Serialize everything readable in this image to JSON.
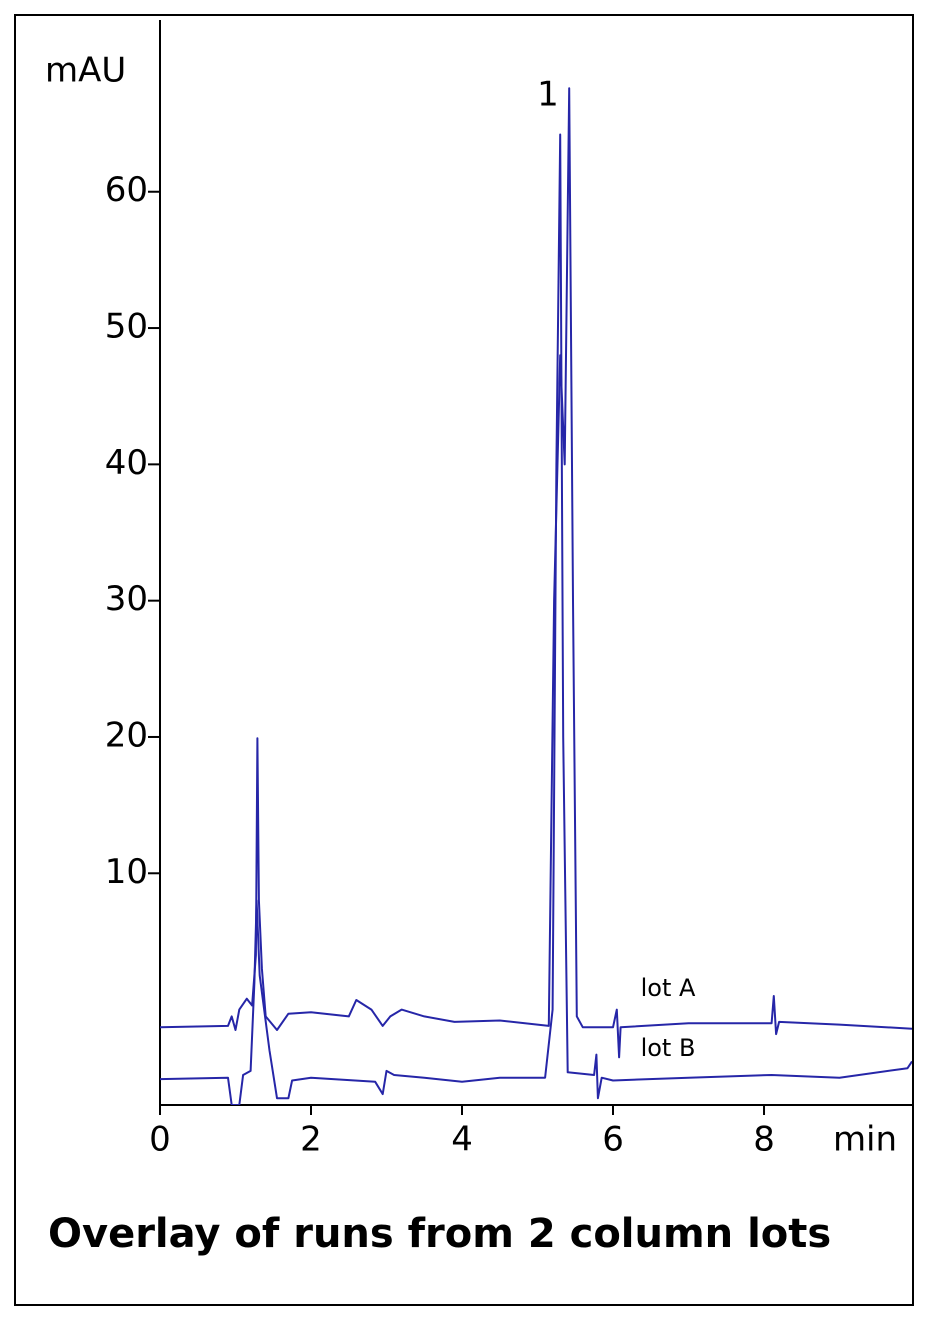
{
  "chart_data": {
    "type": "line",
    "title": "Overlay of runs from 2 column lots",
    "x_label": "min",
    "y_label": "mAU",
    "annotations": [
      "1",
      "lot A",
      "lot B"
    ],
    "xlim": [
      0,
      9.96
    ],
    "ylim": [
      -7,
      72.6
    ],
    "xticks": [
      0,
      2,
      4,
      6,
      8
    ],
    "yticks": [
      10,
      20,
      30,
      40,
      50,
      60
    ],
    "grid": false,
    "series": [
      {
        "name": "lot A",
        "color": "#2626a8",
        "x": [
          0,
          0.9,
          0.95,
          1.0,
          1.05,
          1.15,
          1.22,
          1.27,
          1.29,
          1.31,
          1.35,
          1.4,
          1.55,
          1.7,
          2.0,
          2.5,
          2.6,
          2.8,
          2.95,
          3.05,
          3.2,
          3.5,
          3.9,
          4.5,
          5.15,
          5.22,
          5.3,
          5.36,
          5.42,
          5.47,
          5.52,
          5.6,
          6.0,
          6.05,
          6.08,
          6.1,
          7.0,
          8.1,
          8.13,
          8.16,
          8.2,
          9.0,
          9.96
        ],
        "values": [
          -1.3,
          -1.2,
          -0.5,
          -1.5,
          0.0,
          0.8,
          0.3,
          4,
          19.9,
          8,
          3,
          -0.5,
          -1.5,
          -0.3,
          -0.2,
          -0.5,
          0.7,
          0,
          -1.2,
          -0.5,
          0,
          -0.5,
          -0.9,
          -0.8,
          -1.2,
          30,
          48,
          40,
          67.6,
          30,
          -0.5,
          -1.3,
          -1.3,
          0,
          -3.5,
          -1.3,
          -1.0,
          -1.0,
          1.0,
          -1.8,
          -0.9,
          -1.1,
          -1.4
        ]
      },
      {
        "name": "lot B",
        "color": "#2626a8",
        "x": [
          0,
          0.9,
          0.95,
          1.05,
          1.1,
          1.2,
          1.25,
          1.28,
          1.32,
          1.45,
          1.55,
          1.7,
          1.75,
          2.0,
          2.85,
          2.95,
          3.0,
          3.1,
          3.5,
          4.0,
          4.5,
          5.1,
          5.2,
          5.25,
          5.3,
          5.34,
          5.4,
          5.75,
          5.78,
          5.8,
          5.85,
          6.0,
          7.0,
          8.1,
          9.0,
          9.9,
          9.96
        ],
        "values": [
          -5.1,
          -5.0,
          -7,
          -7,
          -4.8,
          -4.5,
          2,
          8,
          2.5,
          -3,
          -6.5,
          -6.5,
          -5.2,
          -5.0,
          -5.3,
          -6.2,
          -4.5,
          -4.8,
          -5.0,
          -5.3,
          -5.0,
          -5.0,
          0,
          40,
          64.2,
          20,
          -4.6,
          -4.8,
          -3.3,
          -6.5,
          -5.0,
          -5.2,
          -5.0,
          -4.8,
          -5.0,
          -4.3,
          -3.8
        ]
      }
    ]
  }
}
